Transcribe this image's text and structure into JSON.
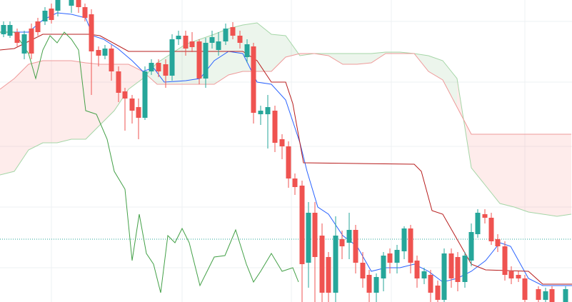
{
  "chart_data": {
    "type": "candlestick",
    "xlim": [
      0,
      801
    ],
    "ylim": [
      0,
      423
    ],
    "xticks": [
      72,
      255,
      408,
      548,
      735
    ],
    "yticks": [
      393,
      308,
      218,
      133,
      48
    ],
    "grid": true,
    "grid_color": "#eef0f3",
    "up_color": "#26a69a",
    "down_color": "#ef5350",
    "price_line": 88,
    "price_line_color": "#26a69a",
    "x": [
      5,
      14,
      24,
      34,
      44,
      53,
      63,
      72,
      81,
      100,
      110,
      119,
      128,
      138,
      147,
      156,
      166,
      175,
      185,
      194,
      203,
      212,
      222,
      232,
      241,
      250,
      260,
      269,
      279,
      288,
      297,
      306,
      316,
      326,
      336,
      346,
      355,
      365,
      375,
      385,
      395,
      404,
      413,
      423,
      432,
      441,
      451,
      460,
      470,
      479,
      489,
      498,
      508,
      517,
      527,
      537,
      546,
      556,
      566,
      575,
      584,
      594,
      603,
      613,
      622,
      632,
      641,
      651,
      660,
      669,
      679,
      688,
      697,
      707,
      716,
      726,
      735,
      754,
      764,
      773,
      792
    ],
    "open": [
      375,
      373,
      378,
      348,
      383,
      393,
      393,
      411,
      408,
      415,
      423,
      413,
      403,
      353,
      345,
      355,
      323,
      295,
      285,
      273,
      258,
      323,
      335,
      333,
      317,
      368,
      373,
      365,
      365,
      313,
      363,
      353,
      365,
      385,
      373,
      343,
      358,
      263,
      263,
      268,
      228,
      218,
      173,
      163,
      55,
      125,
      93,
      63,
      13,
      88,
      83,
      101,
      55,
      38,
      13,
      33,
      68,
      55,
      71,
      103,
      58,
      33,
      38,
      23,
      3,
      68,
      63,
      28,
      58,
      95,
      123,
      118,
      88,
      78,
      43,
      38,
      33,
      18,
      3,
      18,
      0
    ],
    "close": [
      388,
      388,
      363,
      375,
      348,
      378,
      408,
      395,
      423,
      423,
      413,
      398,
      351,
      345,
      355,
      323,
      293,
      285,
      268,
      258,
      323,
      335,
      323,
      317,
      368,
      373,
      355,
      357,
      313,
      363,
      371,
      365,
      383,
      373,
      363,
      361,
      265,
      268,
      273,
      223,
      218,
      173,
      161,
      53,
      125,
      63,
      13,
      13,
      93,
      78,
      101,
      55,
      33,
      13,
      35,
      65,
      55,
      73,
      103,
      55,
      33,
      43,
      13,
      3,
      68,
      33,
      28,
      65,
      98,
      125,
      118,
      85,
      78,
      38,
      33,
      33,
      3,
      3,
      15,
      0,
      18
    ],
    "high": [
      393,
      393,
      383,
      380,
      390,
      398,
      413,
      418,
      423,
      423,
      423,
      418,
      410,
      358,
      360,
      360,
      330,
      300,
      290,
      285,
      330,
      340,
      340,
      340,
      375,
      380,
      380,
      378,
      368,
      370,
      380,
      378,
      390,
      392,
      380,
      368,
      363,
      275,
      290,
      275,
      235,
      225,
      180,
      170,
      140,
      140,
      110,
      70,
      120,
      100,
      125,
      108,
      70,
      45,
      40,
      70,
      75,
      80,
      106,
      108,
      65,
      48,
      45,
      30,
      75,
      75,
      70,
      70,
      110,
      130,
      130,
      125,
      95,
      85,
      50,
      43,
      38,
      22,
      20,
      22,
      22
    ],
    "low": [
      371,
      370,
      358,
      340,
      340,
      373,
      388,
      390,
      400,
      405,
      405,
      393,
      290,
      330,
      340,
      310,
      280,
      240,
      250,
      228,
      255,
      318,
      315,
      300,
      310,
      360,
      345,
      350,
      305,
      300,
      355,
      345,
      360,
      368,
      355,
      335,
      250,
      248,
      215,
      210,
      200,
      160,
      150,
      0,
      20,
      0,
      0,
      0,
      0,
      60,
      60,
      40,
      20,
      0,
      0,
      15,
      40,
      40,
      60,
      40,
      20,
      25,
      0,
      0,
      0,
      20,
      15,
      20,
      50,
      90,
      110,
      80,
      70,
      30,
      25,
      28,
      0,
      0,
      0,
      0,
      0
    ],
    "lines": [
      {
        "color": "#2962ff",
        "x": [
          0,
          40,
          60,
          80,
          100,
          120,
          130,
          145,
          165,
          185,
          200,
          215,
          230,
          260,
          280,
          300,
          320,
          340,
          360,
          380,
          400,
          420,
          430,
          445,
          460,
          480,
          500,
          520,
          540,
          560,
          580,
          600,
          620,
          640,
          660,
          680,
          700,
          715,
          740,
          760,
          801
        ],
        "values": [
          378,
          378,
          395,
          405,
          403,
          398,
          373,
          368,
          355,
          338,
          323,
          328,
          308,
          310,
          313,
          338,
          351,
          348,
          308,
          305,
          283,
          223,
          183,
          133,
          123,
          93,
          78,
          43,
          48,
          48,
          53,
          43,
          28,
          33,
          43,
          58,
          83,
          78,
          33,
          23,
          23
        ]
      },
      {
        "color": "#b71c1c",
        "x": [
          0,
          20,
          60,
          100,
          125,
          140,
          180,
          215,
          280,
          340,
          360,
          380,
          400,
          410,
          425,
          580,
          590,
          605,
          620,
          640,
          660,
          680,
          740,
          760,
          801
        ],
        "values": [
          353,
          355,
          375,
          375,
          375,
          373,
          351,
          351,
          351,
          351,
          338,
          308,
          308,
          278,
          195,
          193,
          183,
          128,
          123,
          88,
          53,
          45,
          43,
          25,
          25
        ]
      },
      {
        "color": "#43a047",
        "x": [
          0,
          20,
          40,
          50,
          60,
          70,
          80,
          90,
          100,
          110,
          120,
          135,
          150,
          160,
          175,
          185,
          195,
          205,
          215,
          225,
          235,
          245,
          255,
          265,
          280,
          300,
          315,
          330,
          345,
          355,
          365,
          380,
          395,
          410,
          418
        ],
        "values": [
          378,
          378,
          348,
          313,
          353,
          373,
          363,
          378,
          368,
          353,
          268,
          263,
          228,
          183,
          158,
          58,
          123,
          68,
          53,
          13,
          93,
          83,
          103,
          83,
          23,
          63,
          65,
          101,
          53,
          28,
          43,
          68,
          43,
          48,
          28
        ]
      }
    ],
    "cloud": {
      "a_color": "#a5d6a7",
      "b_color": "#ef9a9a",
      "up_fill": "rgba(67,160,71,0.10)",
      "down_fill": "rgba(244,67,54,0.10)",
      "x": [
        0,
        20,
        40,
        60,
        80,
        100,
        120,
        140,
        160,
        180,
        200,
        220,
        240,
        260,
        280,
        300,
        320,
        340,
        360,
        380,
        400,
        420,
        440,
        460,
        480,
        500,
        520,
        540,
        560,
        580,
        600,
        620,
        640,
        660,
        680,
        700,
        720,
        740,
        760,
        780,
        800
      ],
      "a": [
        178,
        183,
        213,
        223,
        223,
        228,
        228,
        248,
        268,
        298,
        313,
        335,
        348,
        361,
        368,
        375,
        383,
        388,
        391,
        375,
        373,
        345,
        348,
        348,
        348,
        348,
        348,
        350,
        350,
        348,
        345,
        338,
        313,
        188,
        163,
        138,
        133,
        126,
        123,
        120,
        123
      ],
      "b": [
        298,
        313,
        333,
        338,
        338,
        338,
        335,
        333,
        333,
        333,
        323,
        305,
        305,
        305,
        305,
        305,
        318,
        323,
        323,
        323,
        343,
        348,
        348,
        345,
        333,
        333,
        335,
        348,
        348,
        348,
        323,
        311,
        273,
        235,
        235,
        235,
        235,
        235,
        235,
        235,
        235
      ]
    }
  }
}
